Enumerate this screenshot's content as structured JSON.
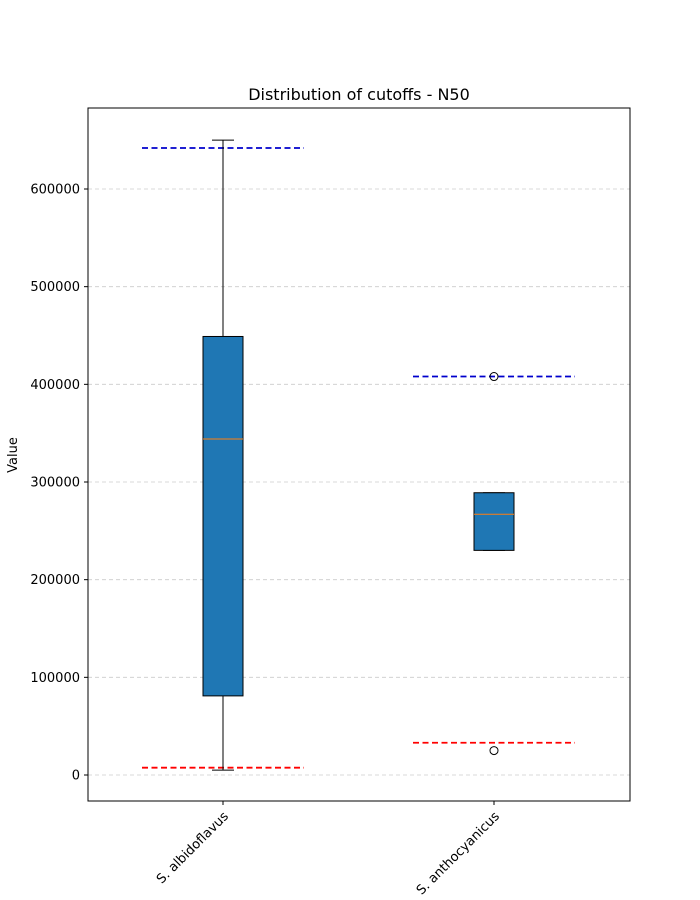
{
  "chart_data": {
    "type": "box",
    "title": "Distribution of cutoffs - N50",
    "xlabel": "",
    "ylabel": "Value",
    "ylim": [
      -27000,
      683000
    ],
    "yticks": [
      0,
      100000,
      200000,
      300000,
      400000,
      500000,
      600000
    ],
    "ytick_labels": [
      "0",
      "100000",
      "200000",
      "300000",
      "400000",
      "500000",
      "600000"
    ],
    "grid": "y-dashed",
    "categories": [
      "S. albidoflavus",
      "S. anthocyanicus"
    ],
    "boxes": [
      {
        "category": "S. albidoflavus",
        "whisker_low": 5000,
        "q1": 81000,
        "median": 344000,
        "q3": 449000,
        "whisker_high": 650000,
        "outliers": [],
        "upper_cutoff": 642000,
        "lower_cutoff": 7500
      },
      {
        "category": "S. anthocyanicus",
        "whisker_low": 230000,
        "q1": 230000,
        "median": 267000,
        "q3": 289000,
        "whisker_high": 289000,
        "outliers": [
          408000,
          25000
        ],
        "upper_cutoff": 408000,
        "lower_cutoff": 33000
      }
    ],
    "colors": {
      "box_fill": "#1f77b4",
      "median": "#ff7f0e",
      "upper_cutoff": "#0000cc",
      "lower_cutoff": "#ff0000",
      "grid": "#cccccc"
    }
  }
}
